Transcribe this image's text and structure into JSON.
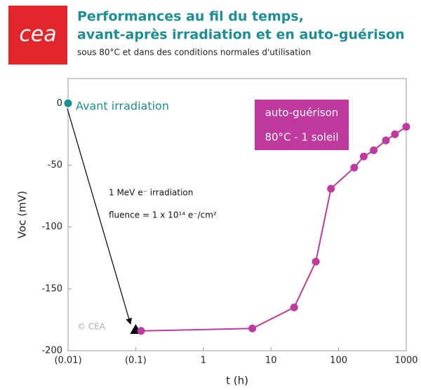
{
  "logo": "cea",
  "chart_data": {
    "type": "line",
    "title": [
      "Performances au fil du temps,",
      "avant-après irradiation et en auto-guérison"
    ],
    "subtitle": "sous 80°C et dans des conditions normales d'utilisation",
    "xlabel": "t (h)",
    "ylabel": "Voc (mV)",
    "xscale": "log",
    "xlim": [
      0.01,
      1000
    ],
    "ylim": [
      -200,
      20
    ],
    "xticks": [
      {
        "value": 0.01,
        "label": "(0.01)"
      },
      {
        "value": 0.1,
        "label": "(0.1)"
      },
      1,
      10,
      100,
      1000
    ],
    "yticks": [
      -200,
      -150,
      -100,
      -50,
      0
    ],
    "series": [
      {
        "name": "Avant irradiation",
        "color": "#1a8f96",
        "marker": "circle",
        "x": [
          0.01
        ],
        "values": [
          0
        ]
      },
      {
        "color": "#000000",
        "marker": "triangle",
        "x": [
          0.1
        ],
        "values": [
          -183
        ]
      },
      {
        "name": "auto-guérison",
        "color": "#c0399f",
        "marker": "circle",
        "x": [
          0.12,
          5.3,
          22,
          46,
          77,
          170,
          235,
          330,
          500,
          680,
          1000
        ],
        "values": [
          -184,
          -182,
          -165,
          -128,
          -69,
          -52,
          -43,
          -38,
          -30,
          -25,
          -19
        ]
      }
    ],
    "annotations": [
      "80°C - 1 soleil",
      "1 MeV e⁻ irradiation",
      "fluence = 1 x 10¹⁴ e⁻/cm²",
      "© CEA"
    ]
  }
}
